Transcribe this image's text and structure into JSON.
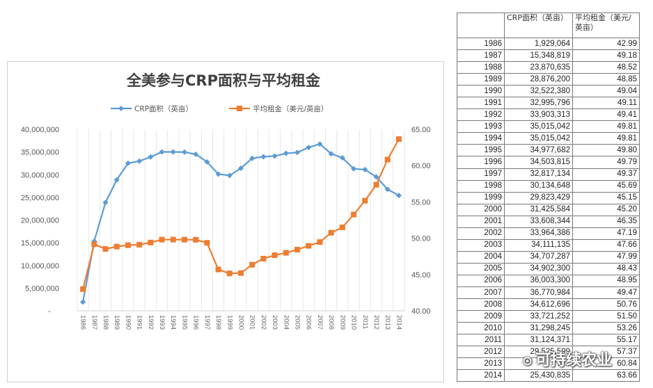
{
  "chart_data": {
    "type": "line",
    "title": "全美参与CRP面积与平均租金",
    "categories": [
      "1986",
      "1987",
      "1988",
      "1989",
      "1990",
      "1991",
      "1992",
      "1993",
      "1994",
      "1995",
      "1996",
      "1997",
      "1998",
      "1999",
      "2000",
      "2001",
      "2002",
      "2003",
      "2004",
      "2005",
      "2006",
      "2007",
      "2008",
      "2009",
      "2010",
      "2011",
      "2012",
      "2013",
      "2014"
    ],
    "series": [
      {
        "name": "CRP面积（英亩）",
        "axis": "left",
        "color": "#5b9bd5",
        "marker": "diamond",
        "values": [
          1929064,
          15348819,
          23870635,
          28876200,
          32522380,
          32995796,
          33903313,
          35015042,
          35015042,
          34977682,
          34503815,
          32817134,
          30134648,
          29823429,
          31425584,
          33608344,
          33964386,
          34111135,
          34707287,
          34902300,
          36003300,
          36770984,
          34612696,
          33721252,
          31298245,
          31124371,
          29525599,
          26781299,
          25430835
        ]
      },
      {
        "name": "平均租金（美元/英亩）",
        "axis": "right",
        "color": "#ed7d31",
        "marker": "square",
        "values": [
          42.99,
          49.18,
          48.52,
          48.85,
          49.04,
          49.11,
          49.41,
          49.81,
          49.81,
          49.8,
          49.79,
          49.37,
          45.69,
          45.15,
          45.2,
          46.35,
          47.19,
          47.66,
          47.99,
          48.43,
          48.95,
          49.47,
          50.76,
          51.5,
          53.26,
          55.17,
          57.37,
          60.84,
          63.66
        ]
      }
    ],
    "y_left": {
      "min": 0,
      "max": 40000000,
      "ticks": [
        "-",
        "5,000,000",
        "10,000,000",
        "15,000,000",
        "20,000,000",
        "25,000,000",
        "30,000,000",
        "35,000,000",
        "40,000,000"
      ]
    },
    "y_right": {
      "min": 40,
      "max": 65,
      "ticks": [
        "40.00",
        "45.00",
        "50.00",
        "55.00",
        "60.00",
        "65.00"
      ]
    },
    "grid": "vertical",
    "legend": "top-center"
  },
  "table": {
    "headers": [
      "",
      "CRP面积（英亩）",
      "平均租金（美元/英亩）"
    ],
    "rows": [
      [
        "1986",
        "1,929,064",
        "42.99"
      ],
      [
        "1987",
        "15,348,819",
        "49.18"
      ],
      [
        "1988",
        "23,870,635",
        "48.52"
      ],
      [
        "1989",
        "28,876,200",
        "48.85"
      ],
      [
        "1990",
        "32,522,380",
        "49.04"
      ],
      [
        "1991",
        "32,995,796",
        "49.11"
      ],
      [
        "1992",
        "33,903,313",
        "49.41"
      ],
      [
        "1993",
        "35,015,042",
        "49.81"
      ],
      [
        "1994",
        "35,015,042",
        "49.81"
      ],
      [
        "1995",
        "34,977,682",
        "49.80"
      ],
      [
        "1996",
        "34,503,815",
        "49.79"
      ],
      [
        "1997",
        "32,817,134",
        "49.37"
      ],
      [
        "1998",
        "30,134,648",
        "45.69"
      ],
      [
        "1999",
        "29,823,429",
        "45.15"
      ],
      [
        "2000",
        "31,425,584",
        "45.20"
      ],
      [
        "2001",
        "33,608,344",
        "46.35"
      ],
      [
        "2002",
        "33,964,386",
        "47.19"
      ],
      [
        "2003",
        "34,111,135",
        "47.66"
      ],
      [
        "2004",
        "34,707,287",
        "47.99"
      ],
      [
        "2005",
        "34,902,300",
        "48.43"
      ],
      [
        "2006",
        "36,003,300",
        "48.95"
      ],
      [
        "2007",
        "36,770,984",
        "49.47"
      ],
      [
        "2008",
        "34,612,696",
        "50.76"
      ],
      [
        "2009",
        "33,721,252",
        "51.50"
      ],
      [
        "2010",
        "31,298,245",
        "53.26"
      ],
      [
        "2011",
        "31,124,371",
        "55.17"
      ],
      [
        "2012",
        "29,525,599",
        "57.37"
      ],
      [
        "2013",
        "2…",
        "60.84"
      ],
      [
        "2014",
        "25,430,835",
        "63.66"
      ]
    ]
  },
  "watermark": {
    "text": "可持续农业",
    "icon": "wechat-icon"
  }
}
